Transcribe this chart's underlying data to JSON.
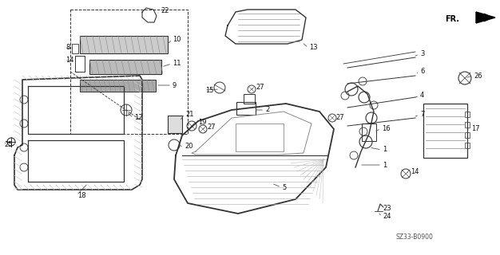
{
  "bg_color": "#ffffff",
  "diagram_code": "SZ33-B0900",
  "gray": "#333333",
  "lgray": "#888888",
  "dgray": "#111111"
}
